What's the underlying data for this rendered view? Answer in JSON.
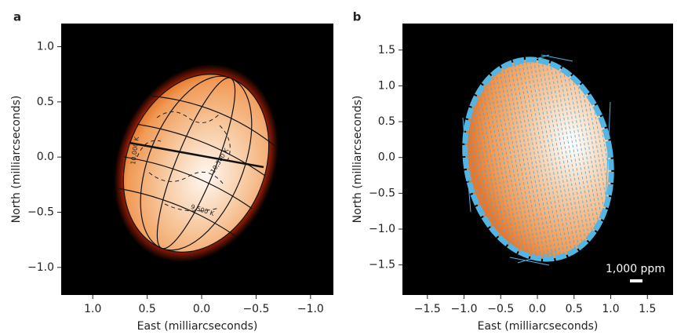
{
  "chart_data": [
    {
      "type": "image",
      "panel": "a",
      "x_label": "East (milliarcseconds)",
      "y_label": "North (milliarcseconds)",
      "xlim": [
        1.29,
        -1.21
      ],
      "ylim": [
        -1.25,
        1.21
      ],
      "xticks": [
        {
          "value": 1,
          "label": "1.0"
        },
        0.5,
        {
          "value": 0,
          "label": "0.0"
        },
        {
          "value": -0.5,
          "label": "−0.5"
        },
        {
          "value": -1,
          "label": "−1.0"
        }
      ],
      "yticks": [
        {
          "value": -1,
          "label": "−1.0"
        },
        {
          "value": -0.5,
          "label": "−0.5"
        },
        {
          "value": 0,
          "label": "0.0"
        },
        0.5,
        {
          "value": 1,
          "label": "1.0"
        }
      ],
      "annotations": [
        "10,000 K",
        "10,500 K",
        "9,500 K"
      ]
    },
    {
      "type": "image",
      "panel": "b",
      "x_label": "East (milliarcseconds)",
      "y_label": "North (milliarcseconds)",
      "xlim": [
        -1.84,
        1.85
      ],
      "ylim": [
        -1.92,
        1.87
      ],
      "xticks": [
        {
          "value": -1.5,
          "label": "−1.5"
        },
        {
          "value": -1,
          "label": "−1.0"
        },
        {
          "value": -0.5,
          "label": "−0.5"
        },
        {
          "value": 0,
          "label": "0.0"
        },
        0.5,
        {
          "value": 1,
          "label": "1.0"
        },
        1.5
      ],
      "yticks": [
        {
          "value": -1.5,
          "label": "−1.5"
        },
        {
          "value": -1,
          "label": "−1.0"
        },
        {
          "value": -0.5,
          "label": "−0.5"
        },
        {
          "value": 0,
          "label": "0.0"
        },
        0.5,
        {
          "value": 1,
          "label": "1.0"
        },
        1.5
      ],
      "annotations": [
        "1,000 ppm"
      ]
    }
  ]
}
